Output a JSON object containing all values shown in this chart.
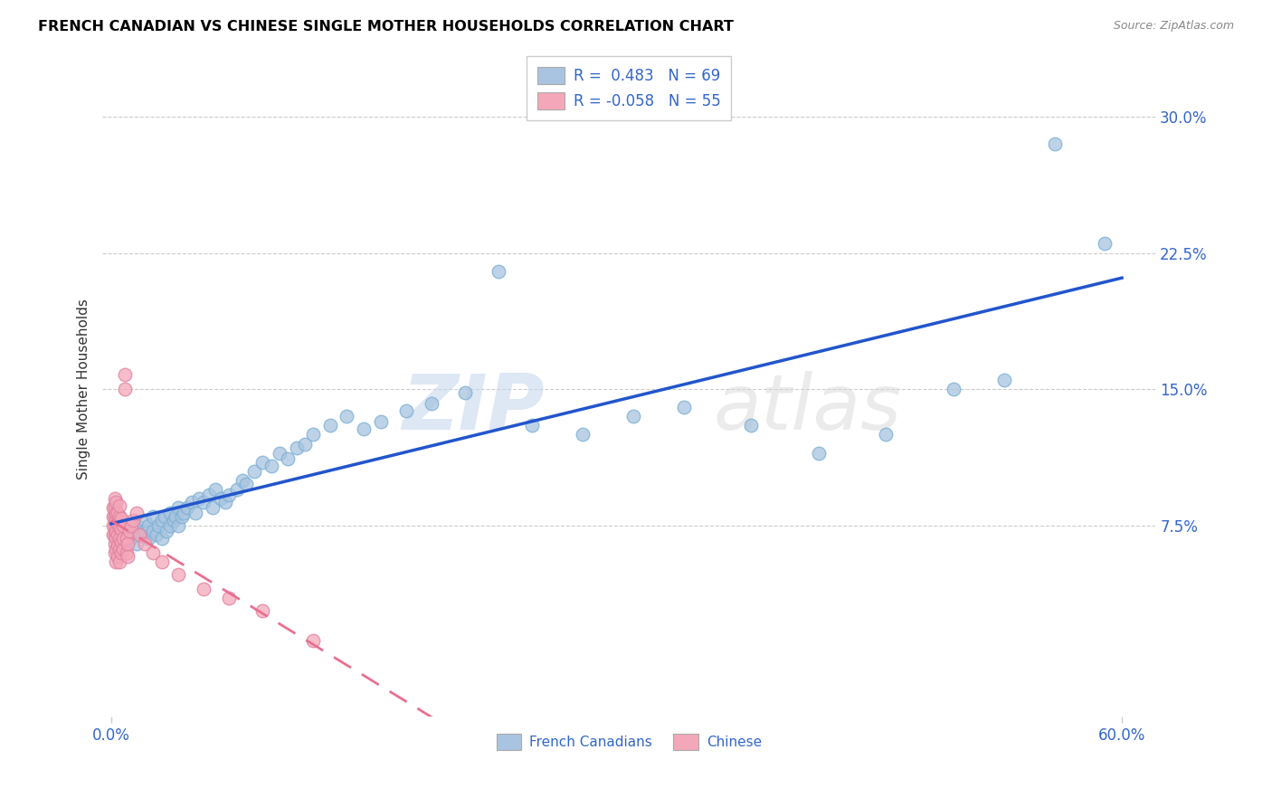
{
  "title": "FRENCH CANADIAN VS CHINESE SINGLE MOTHER HOUSEHOLDS CORRELATION CHART",
  "source": "Source: ZipAtlas.com",
  "ylabel": "Single Mother Households",
  "ylabel_ticks": [
    "7.5%",
    "15.0%",
    "22.5%",
    "30.0%"
  ],
  "ylabel_vals": [
    0.075,
    0.15,
    0.225,
    0.3
  ],
  "xlabel_ticks": [
    "0.0%",
    "",
    "",
    "",
    "",
    "",
    "60.0%"
  ],
  "xlabel_vals": [
    0.0,
    0.1,
    0.2,
    0.3,
    0.4,
    0.5,
    0.6
  ],
  "xlim": [
    -0.005,
    0.62
  ],
  "ylim": [
    -0.03,
    0.33
  ],
  "french_R": 0.483,
  "french_N": 69,
  "chinese_R": -0.058,
  "chinese_N": 55,
  "french_color": "#a8c4e0",
  "chinese_color": "#f4a7b9",
  "french_line_color": "#2255cc",
  "chinese_line_color": "#e87090",
  "watermark_zip": "ZIP",
  "watermark_atlas": "atlas",
  "french_canadians_x": [
    0.005,
    0.008,
    0.01,
    0.012,
    0.013,
    0.015,
    0.015,
    0.018,
    0.02,
    0.02,
    0.022,
    0.022,
    0.025,
    0.025,
    0.027,
    0.028,
    0.03,
    0.03,
    0.032,
    0.033,
    0.035,
    0.035,
    0.037,
    0.038,
    0.04,
    0.04,
    0.042,
    0.043,
    0.045,
    0.048,
    0.05,
    0.052,
    0.055,
    0.058,
    0.06,
    0.062,
    0.065,
    0.068,
    0.07,
    0.075,
    0.078,
    0.08,
    0.085,
    0.09,
    0.095,
    0.1,
    0.105,
    0.11,
    0.115,
    0.12,
    0.13,
    0.14,
    0.15,
    0.16,
    0.175,
    0.19,
    0.21,
    0.23,
    0.25,
    0.28,
    0.31,
    0.34,
    0.38,
    0.42,
    0.46,
    0.5,
    0.53,
    0.56,
    0.59
  ],
  "french_canadians_y": [
    0.062,
    0.065,
    0.07,
    0.068,
    0.072,
    0.065,
    0.075,
    0.07,
    0.072,
    0.078,
    0.068,
    0.075,
    0.072,
    0.08,
    0.07,
    0.075,
    0.068,
    0.078,
    0.08,
    0.072,
    0.075,
    0.082,
    0.078,
    0.08,
    0.075,
    0.085,
    0.08,
    0.082,
    0.085,
    0.088,
    0.082,
    0.09,
    0.088,
    0.092,
    0.085,
    0.095,
    0.09,
    0.088,
    0.092,
    0.095,
    0.1,
    0.098,
    0.105,
    0.11,
    0.108,
    0.115,
    0.112,
    0.118,
    0.12,
    0.125,
    0.13,
    0.135,
    0.128,
    0.132,
    0.138,
    0.142,
    0.148,
    0.215,
    0.13,
    0.125,
    0.135,
    0.14,
    0.13,
    0.115,
    0.125,
    0.15,
    0.155,
    0.285,
    0.23
  ],
  "chinese_x": [
    0.001,
    0.001,
    0.001,
    0.001,
    0.002,
    0.002,
    0.002,
    0.002,
    0.002,
    0.002,
    0.002,
    0.003,
    0.003,
    0.003,
    0.003,
    0.003,
    0.003,
    0.003,
    0.004,
    0.004,
    0.004,
    0.004,
    0.004,
    0.005,
    0.005,
    0.005,
    0.005,
    0.005,
    0.005,
    0.006,
    0.006,
    0.006,
    0.006,
    0.007,
    0.007,
    0.007,
    0.008,
    0.008,
    0.009,
    0.009,
    0.01,
    0.01,
    0.011,
    0.012,
    0.013,
    0.015,
    0.017,
    0.02,
    0.025,
    0.03,
    0.04,
    0.055,
    0.07,
    0.09,
    0.12
  ],
  "chinese_y": [
    0.07,
    0.075,
    0.08,
    0.085,
    0.06,
    0.065,
    0.07,
    0.075,
    0.08,
    0.085,
    0.09,
    0.055,
    0.062,
    0.068,
    0.072,
    0.078,
    0.082,
    0.088,
    0.058,
    0.064,
    0.07,
    0.076,
    0.082,
    0.055,
    0.062,
    0.068,
    0.074,
    0.08,
    0.086,
    0.06,
    0.066,
    0.073,
    0.079,
    0.062,
    0.068,
    0.075,
    0.15,
    0.158,
    0.06,
    0.068,
    0.058,
    0.065,
    0.072,
    0.075,
    0.078,
    0.082,
    0.07,
    0.065,
    0.06,
    0.055,
    0.048,
    0.04,
    0.035,
    0.028,
    0.012
  ]
}
